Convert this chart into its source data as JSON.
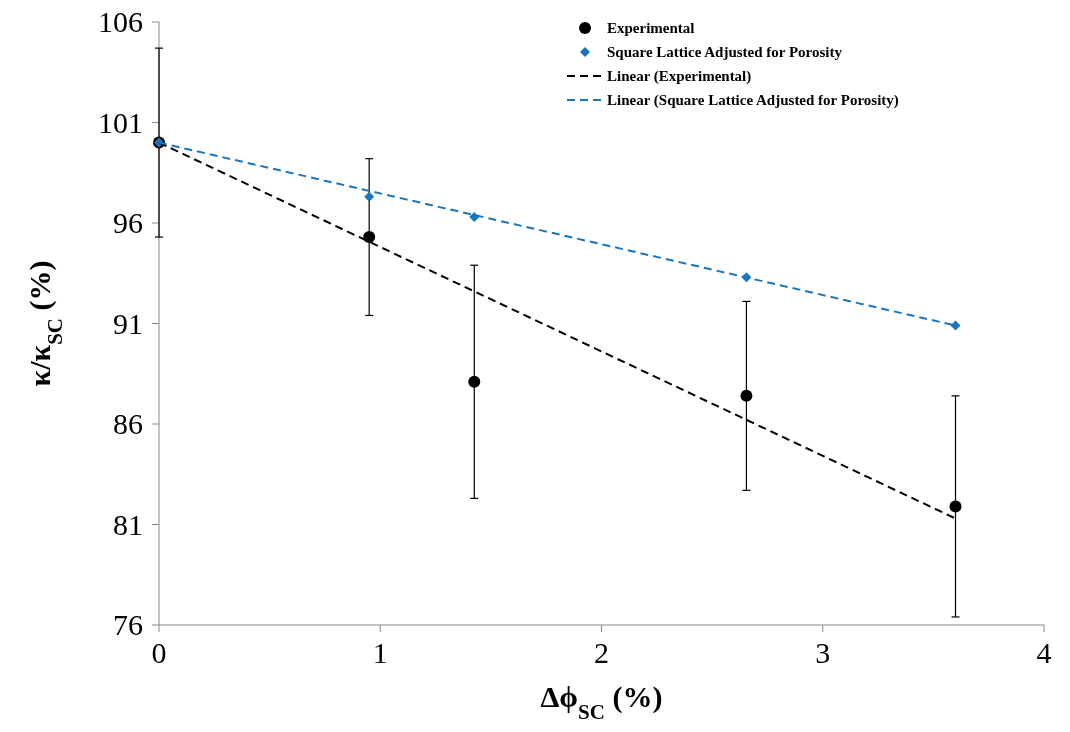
{
  "chart_data": {
    "type": "scatter",
    "xlabel": "Δϕ$_{SC}$ (%)",
    "ylabel": "κ/κ$_{SC}$ (%)",
    "xlim": [
      0,
      4
    ],
    "xticks": [
      0,
      1,
      2,
      3,
      4
    ],
    "ylim": [
      76,
      106
    ],
    "yticks": [
      76,
      81,
      86,
      91,
      96,
      101,
      106
    ],
    "grid": false,
    "legend": "top right",
    "series": [
      {
        "name": "Experimental",
        "marker": "circle",
        "color": "#000000",
        "x": [
          0,
          0.95,
          1.425,
          2.655,
          3.6
        ],
        "values": [
          100,
          95.3,
          88.1,
          87.4,
          81.9
        ],
        "errors": [
          4.7,
          3.9,
          5.8,
          4.7,
          5.5
        ]
      },
      {
        "name": "Square Lattice Adjusted for Porosity",
        "marker": "diamond",
        "color": "#1b75bc",
        "x": [
          0,
          0.95,
          1.425,
          2.655,
          3.6
        ],
        "values": [
          100,
          97.3,
          96.3,
          93.3,
          90.9
        ]
      },
      {
        "name": "Linear (Experimental)",
        "type": "line",
        "line_style": "dashed",
        "color": "#000000",
        "x": [
          0,
          3.6
        ],
        "values": [
          100,
          81.3
        ]
      },
      {
        "name": "Linear (Square Lattice Adjusted for Porosity)",
        "type": "line",
        "line_style": "dashed",
        "color": "#1b75bc",
        "x": [
          0,
          3.6
        ],
        "values": [
          100,
          90.9
        ]
      }
    ]
  }
}
